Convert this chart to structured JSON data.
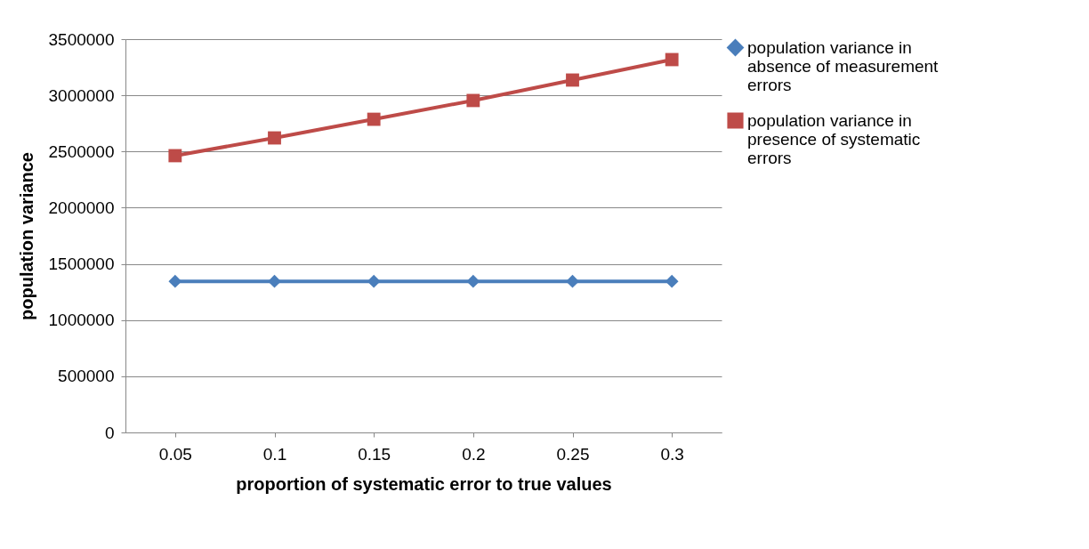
{
  "chart_data": {
    "type": "line",
    "xlabel": "proportion of systematic error to true values",
    "ylabel": "population variance",
    "categories": [
      "0.05",
      "0.1",
      "0.15",
      "0.2",
      "0.25",
      "0.3"
    ],
    "series": [
      {
        "name": "population variance in absence of measurement errors",
        "color": "#4a7ebb",
        "marker": "diamond",
        "values": [
          1345000,
          1345000,
          1345000,
          1345000,
          1345000,
          1345000
        ]
      },
      {
        "name": "population variance in presence of systematic errors",
        "color": "#be4b48",
        "marker": "square",
        "values": [
          2463000,
          2621000,
          2787000,
          2954000,
          3136000,
          3318000
        ]
      }
    ],
    "ylim": [
      0,
      3500000
    ],
    "yticks": [
      0,
      500000,
      1000000,
      1500000,
      2000000,
      2500000,
      3000000,
      3500000
    ],
    "grid": "y",
    "legend": "right",
    "line_style": "solid"
  }
}
